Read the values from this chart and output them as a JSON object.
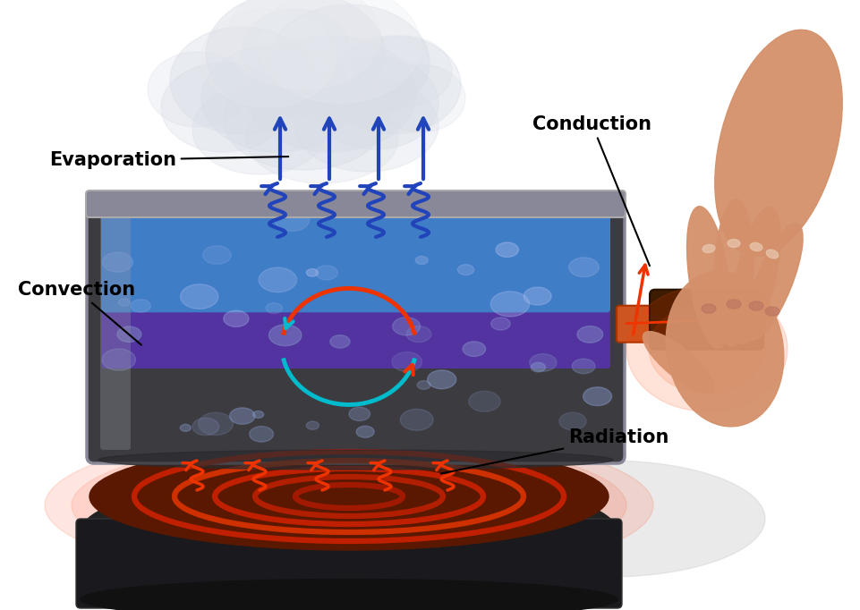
{
  "background_color": "#ffffff",
  "fig_w": 9.62,
  "fig_h": 6.82,
  "labels": {
    "evaporation": "Evaporation",
    "convection": "Convection",
    "conduction": "Conduction",
    "radiation": "Radiation"
  },
  "label_fontsize": 15,
  "arrow_color_blue": "#2244bb",
  "arrow_color_red": "#ee3300",
  "arrow_color_cyan": "#00bbcc",
  "pan_gray": "#5a5a60",
  "pan_dark": "#2a2a2e",
  "liquid_blue": "#4488cc",
  "liquid_purple": "#5533aa",
  "stove_brown": "#5a1800",
  "stove_black": "#111111",
  "handle_orange": "#cc5522",
  "handle_dark": "#3a1800",
  "steam_color": "#c8cdd4",
  "hand_color": "#d4906a",
  "shadow_color": "#cccccc"
}
